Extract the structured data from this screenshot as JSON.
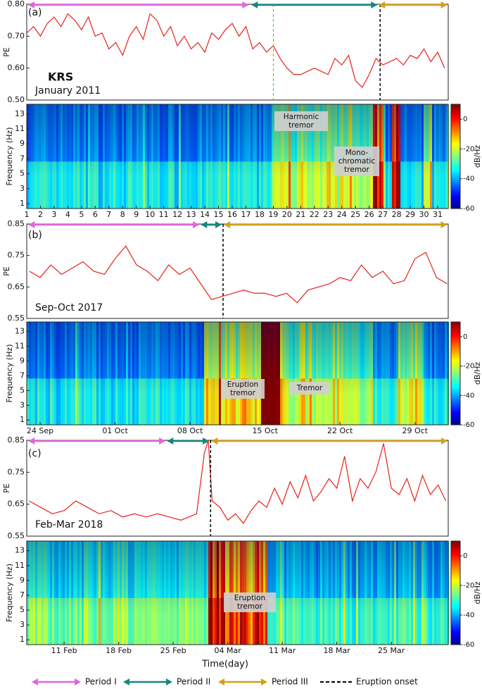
{
  "chart_data": [
    {
      "type": "line",
      "label": "(a)",
      "station": "KRS",
      "subtitle": "January 2011",
      "ylabel": "PE",
      "color": "#e8201a",
      "x": [
        1,
        1.5,
        2,
        2.5,
        3,
        3.5,
        4,
        4.5,
        5,
        5.5,
        6,
        6.5,
        7,
        7.5,
        8,
        8.5,
        9,
        9.5,
        10,
        10.5,
        11,
        11.5,
        12,
        12.5,
        13,
        13.5,
        14,
        14.5,
        15,
        15.5,
        16,
        16.5,
        17,
        17.5,
        18,
        18.5,
        19,
        19.5,
        20,
        20.5,
        21,
        21.5,
        22,
        22.5,
        23,
        23.5,
        24,
        24.5,
        25,
        25.5,
        26,
        26.5,
        27,
        27.5,
        28,
        28.5,
        29,
        29.5,
        30,
        30.5,
        31,
        31.5
      ],
      "values": [
        0.71,
        0.73,
        0.7,
        0.74,
        0.76,
        0.73,
        0.77,
        0.75,
        0.72,
        0.76,
        0.7,
        0.71,
        0.66,
        0.68,
        0.64,
        0.7,
        0.73,
        0.69,
        0.77,
        0.75,
        0.7,
        0.73,
        0.67,
        0.7,
        0.66,
        0.68,
        0.65,
        0.71,
        0.69,
        0.72,
        0.74,
        0.7,
        0.73,
        0.66,
        0.68,
        0.65,
        0.67,
        0.63,
        0.6,
        0.58,
        0.58,
        0.59,
        0.6,
        0.59,
        0.58,
        0.63,
        0.61,
        0.64,
        0.56,
        0.54,
        0.58,
        0.63,
        0.61,
        0.62,
        0.63,
        0.61,
        0.64,
        0.63,
        0.66,
        0.62,
        0.65,
        0.6
      ],
      "xlim": [
        1,
        31.77
      ],
      "xticks": [
        1,
        2,
        3,
        4,
        5,
        6,
        7,
        8,
        9,
        10,
        11,
        12,
        13,
        14,
        15,
        16,
        17,
        18,
        19,
        20,
        21,
        22,
        23,
        24,
        25,
        26,
        27,
        28,
        29,
        30,
        31
      ],
      "ylim": [
        0.5,
        0.8
      ],
      "yticks": [
        {
          "value": 0.5,
          "label": "0.50"
        },
        {
          "value": 0.6,
          "label": "0.60"
        },
        {
          "value": 0.7,
          "label": "0.70"
        },
        {
          "value": 0.8,
          "label": "0.80"
        }
      ],
      "periods": [
        {
          "start": 1.1,
          "end": 17.2
        },
        {
          "start": 17.4,
          "end": 26.6
        },
        {
          "start": 26.7,
          "end": 31.7
        }
      ],
      "eruption_onset": 26.8,
      "green_dashed_x": 19,
      "spectrogram": {
        "ylabel": "Frequency (Hz)",
        "ylim": [
          0.35,
          14.3
        ],
        "yticks": [
          1,
          3,
          5,
          7,
          9,
          11,
          13
        ],
        "colorbar_label": "dB/Hz",
        "clim": [
          -60,
          10
        ],
        "cticks": [
          0,
          -20,
          -40,
          -60
        ],
        "annotations": [
          {
            "lines": [
              "Harmonic",
              "tremor"
            ]
          },
          {
            "lines": [
              "Mono-",
              "chromatic",
              "tremor"
            ]
          }
        ]
      }
    },
    {
      "type": "line",
      "label": "(b)",
      "subtitle": "Sep-Oct 2017",
      "ylabel": "PE",
      "color": "#e8201a",
      "x": [
        -1,
        0,
        1,
        2,
        3,
        4,
        5,
        6,
        7,
        8,
        9,
        10,
        11,
        12,
        13,
        14,
        15,
        16,
        17,
        18,
        19,
        20,
        21,
        22,
        23,
        24,
        25,
        26,
        27,
        28,
        29,
        30,
        31,
        32,
        33,
        34,
        35,
        36,
        37,
        38
      ],
      "values": [
        0.7,
        0.68,
        0.72,
        0.69,
        0.71,
        0.73,
        0.7,
        0.69,
        0.74,
        0.78,
        0.72,
        0.7,
        0.67,
        0.72,
        0.69,
        0.71,
        0.66,
        0.61,
        0.62,
        0.63,
        0.64,
        0.63,
        0.63,
        0.62,
        0.63,
        0.6,
        0.64,
        0.65,
        0.66,
        0.68,
        0.67,
        0.72,
        0.68,
        0.7,
        0.66,
        0.67,
        0.74,
        0.76,
        0.68,
        0.66
      ],
      "xlim": [
        -1.25,
        38.1
      ],
      "xticks": [
        {
          "value": 0,
          "label": "24 Sep"
        },
        {
          "value": 7,
          "label": "01 Oct"
        },
        {
          "value": 14,
          "label": "08 Oct"
        },
        {
          "value": 21,
          "label": "15 Oct"
        },
        {
          "value": 28,
          "label": "22 Oct"
        },
        {
          "value": 35,
          "label": "29 Oct"
        }
      ],
      "ylim": [
        0.55,
        0.85
      ],
      "yticks": [
        0.55,
        0.65,
        0.75,
        0.85
      ],
      "periods": [
        {
          "start": -1.1,
          "end": 14.85
        },
        {
          "start": 15.0,
          "end": 16.95
        },
        {
          "start": 17.15,
          "end": 38.0
        }
      ],
      "eruption_onset": 17.08,
      "spectrogram": {
        "ylabel": "Frequency (Hz)",
        "ylim": [
          0.35,
          14.3
        ],
        "yticks": [
          1,
          3,
          5,
          7,
          9,
          11,
          13
        ],
        "colorbar_label": "dB/Hz",
        "clim": [
          -60,
          10
        ],
        "cticks": [
          0,
          -20,
          -40,
          -60
        ],
        "annotations": [
          {
            "lines": [
              "Eruption",
              "tremor"
            ]
          },
          {
            "lines": [
              "Tremor"
            ]
          }
        ]
      }
    },
    {
      "type": "line",
      "label": "(c)",
      "subtitle": "Feb-Mar 2018",
      "ylabel": "PE",
      "color": "#e8201a",
      "x": [
        -4.5,
        -3,
        -1.5,
        0,
        1.5,
        3,
        4.5,
        6,
        7.5,
        9,
        10.5,
        12,
        13.5,
        15,
        16,
        17,
        18,
        18.5,
        19,
        20,
        21,
        22,
        23,
        24,
        25,
        26,
        27,
        28,
        29,
        30,
        31,
        32,
        33,
        34,
        35,
        36,
        37,
        38,
        39,
        40,
        41,
        42,
        43,
        44,
        45,
        46,
        47,
        48,
        49
      ],
      "values": [
        0.66,
        0.64,
        0.62,
        0.63,
        0.66,
        0.64,
        0.62,
        0.63,
        0.61,
        0.62,
        0.61,
        0.62,
        0.61,
        0.6,
        0.61,
        0.62,
        0.81,
        0.85,
        0.66,
        0.64,
        0.6,
        0.62,
        0.59,
        0.63,
        0.66,
        0.64,
        0.7,
        0.65,
        0.72,
        0.67,
        0.74,
        0.66,
        0.69,
        0.73,
        0.7,
        0.8,
        0.66,
        0.73,
        0.7,
        0.75,
        0.84,
        0.7,
        0.68,
        0.73,
        0.66,
        0.74,
        0.68,
        0.71,
        0.66
      ],
      "xlim": [
        -4.8,
        49.3
      ],
      "xticks": [
        {
          "value": 0,
          "label": "11 Feb"
        },
        {
          "value": 7,
          "label": "18 Feb"
        },
        {
          "value": 14,
          "label": "25 Feb"
        },
        {
          "value": 21,
          "label": "04 Mar"
        },
        {
          "value": 28,
          "label": "11 Mar"
        },
        {
          "value": 35,
          "label": "18 Mar"
        },
        {
          "value": 42,
          "label": "25 Mar"
        }
      ],
      "ylim": [
        0.55,
        0.85
      ],
      "yticks": [
        0.55,
        0.65,
        0.75,
        0.85
      ],
      "periods": [
        {
          "start": -4.6,
          "end": 13.0
        },
        {
          "start": 13.2,
          "end": 18.6
        },
        {
          "start": 18.9,
          "end": 49.2
        }
      ],
      "eruption_onset": 18.8,
      "spectrogram": {
        "ylabel": "Frequency (Hz)",
        "ylim": [
          0.35,
          14.3
        ],
        "yticks": [
          1,
          3,
          5,
          7,
          9,
          11,
          13
        ],
        "colorbar_label": "dB/Hz",
        "clim": [
          -60,
          10
        ],
        "cticks": [
          0,
          -20,
          -40,
          -60
        ],
        "annotations": [
          {
            "lines": [
              "Eruption",
              "tremor"
            ]
          }
        ]
      }
    }
  ],
  "xlabel": "Time(day)",
  "legend": [
    {
      "name": "Period I",
      "color": "#e066e0"
    },
    {
      "name": "Period II",
      "color": "#16877e"
    },
    {
      "name": "Period III",
      "color": "#d4a017"
    },
    {
      "name": "Eruption onset",
      "color": "#000000"
    }
  ]
}
